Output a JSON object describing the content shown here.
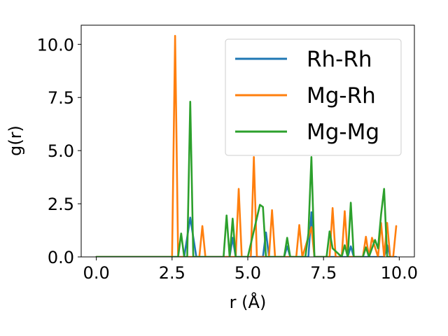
{
  "chart_data": {
    "type": "line",
    "xlabel": "r (Å)",
    "ylabel": "g(r)",
    "xlim": [
      -0.5,
      10.5
    ],
    "ylim": [
      0,
      10.9
    ],
    "xticks": [
      "0.0",
      "2.5",
      "5.0",
      "7.5",
      "10.0"
    ],
    "yticks": [
      "0.0",
      "2.5",
      "5.0",
      "7.5",
      "10.0"
    ],
    "xtick_values": [
      0,
      2.5,
      5.0,
      7.5,
      10.0
    ],
    "ytick_values": [
      0,
      2.5,
      5.0,
      7.5,
      10.0
    ],
    "grid": false,
    "legend_position": "top-right",
    "series": [
      {
        "name": "Rh-Rh",
        "color": "#1f77b4",
        "x": [
          0,
          2.9,
          3.1,
          3.3,
          4.4,
          4.5,
          4.6,
          5.5,
          5.6,
          5.7,
          6.2,
          6.3,
          6.4,
          7.0,
          7.1,
          7.2,
          8.3,
          8.4,
          8.5,
          9.5,
          9.6,
          9.7,
          9.9
        ],
        "y": [
          0,
          0,
          1.85,
          0,
          0,
          0.9,
          0,
          0,
          1.15,
          0,
          0,
          0.5,
          0,
          0,
          2.1,
          0,
          0,
          0.5,
          0,
          0,
          0.55,
          0,
          0
        ]
      },
      {
        "name": "Mg-Rh",
        "color": "#ff7f0e",
        "x": [
          0,
          2.5,
          2.6,
          2.7,
          3.4,
          3.5,
          3.6,
          4.6,
          4.7,
          4.8,
          5.1,
          5.2,
          5.3,
          5.7,
          5.8,
          5.9,
          6.6,
          6.7,
          6.8,
          7.1,
          7.2,
          7.7,
          7.8,
          7.9,
          8.1,
          8.2,
          8.3,
          8.8,
          8.9,
          9.0,
          9.1,
          9.3,
          9.4,
          9.5,
          9.6,
          9.7,
          9.8,
          9.9
        ],
        "y": [
          0,
          0,
          10.4,
          0,
          0,
          1.45,
          0,
          0,
          3.2,
          0,
          0,
          4.7,
          0,
          0,
          2.2,
          0,
          0,
          1.5,
          0,
          1.4,
          0,
          0,
          2.3,
          0,
          0,
          2.15,
          0,
          0,
          0.95,
          0,
          0.9,
          0,
          1.6,
          0,
          1.6,
          0,
          0,
          1.45
        ]
      },
      {
        "name": "Mg-Mg",
        "color": "#2ca02c",
        "x": [
          0,
          2.7,
          2.8,
          2.9,
          3.0,
          3.1,
          3.2,
          4.2,
          4.3,
          4.4,
          4.5,
          4.6,
          5.0,
          5.4,
          5.5,
          5.6,
          6.2,
          6.3,
          6.4,
          6.9,
          7.0,
          7.1,
          7.2,
          7.6,
          7.7,
          7.8,
          8.1,
          8.2,
          8.3,
          8.4,
          8.5,
          8.8,
          8.9,
          9.0,
          9.2,
          9.3,
          9.4,
          9.5,
          9.6,
          9.7
        ],
        "y": [
          0,
          0,
          1.1,
          0,
          0,
          7.3,
          0,
          0,
          1.95,
          0,
          1.8,
          0,
          0,
          2.45,
          2.35,
          0,
          0,
          0.9,
          0,
          0,
          1.1,
          4.7,
          0,
          0,
          1.2,
          0.4,
          0,
          0.55,
          0,
          2.55,
          0,
          0,
          0.45,
          0,
          0.8,
          0.4,
          2.0,
          3.2,
          0,
          0
        ]
      }
    ]
  }
}
